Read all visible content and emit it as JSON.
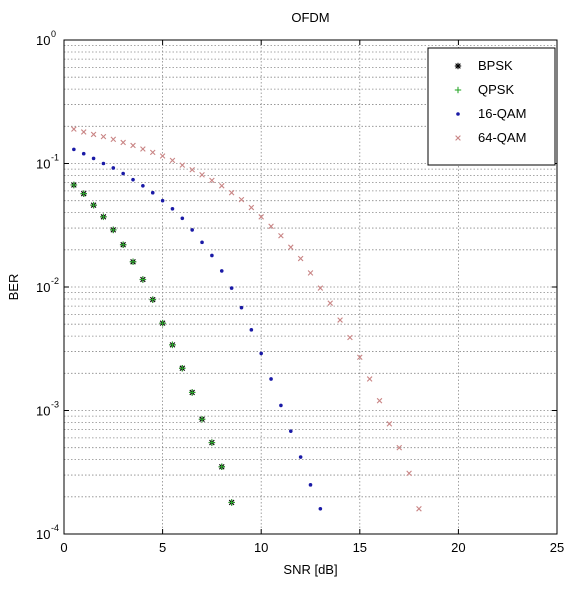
{
  "chart_data": {
    "type": "scatter",
    "title": "OFDM",
    "xlabel": "SNR [dB]",
    "ylabel": "BER",
    "xlim": [
      0,
      25
    ],
    "ylim": [
      0.0001,
      1
    ],
    "yscale": "log",
    "grid": true,
    "legend_position": "top-right",
    "x_ticks": [
      {
        "value": 0,
        "label": "0"
      },
      {
        "value": 5,
        "label": "5"
      },
      {
        "value": 10,
        "label": "10"
      },
      {
        "value": 15,
        "label": "15"
      },
      {
        "value": 20,
        "label": "20"
      },
      {
        "value": 25,
        "label": "25"
      }
    ],
    "y_ticks": [
      {
        "value": 0.0001,
        "base": "10",
        "exp": "-4"
      },
      {
        "value": 0.001,
        "base": "10",
        "exp": "-3"
      },
      {
        "value": 0.01,
        "base": "10",
        "exp": "-2"
      },
      {
        "value": 0.1,
        "base": "10",
        "exp": "-1"
      },
      {
        "value": 1,
        "base": "10",
        "exp": "0"
      }
    ],
    "series": [
      {
        "name": "BPSK",
        "marker": "asterisk",
        "color": "#000000",
        "x": [
          0.5,
          1,
          1.5,
          2,
          2.5,
          3,
          3.5,
          4,
          4.5,
          5,
          5.5,
          6,
          6.5,
          7,
          7.5,
          8,
          8.5
        ],
        "y": [
          0.067,
          0.057,
          0.046,
          0.037,
          0.029,
          0.022,
          0.016,
          0.0115,
          0.0079,
          0.0051,
          0.0034,
          0.0022,
          0.0014,
          0.00085,
          0.00055,
          0.00035,
          0.00018
        ]
      },
      {
        "name": "QPSK",
        "marker": "plus",
        "color": "#2ea82e",
        "x": [
          0.5,
          1,
          1.5,
          2,
          2.5,
          3,
          3.5,
          4,
          4.5,
          5,
          5.5,
          6,
          6.5,
          7,
          7.5,
          8,
          8.5
        ],
        "y": [
          0.067,
          0.057,
          0.046,
          0.037,
          0.029,
          0.022,
          0.016,
          0.0115,
          0.0079,
          0.0051,
          0.0034,
          0.0022,
          0.0014,
          0.00085,
          0.00055,
          0.00035,
          0.00018
        ]
      },
      {
        "name": "16-QAM",
        "marker": "dot",
        "color": "#1a1aa6",
        "x": [
          0.5,
          1,
          1.5,
          2,
          2.5,
          3,
          3.5,
          4,
          4.5,
          5,
          5.5,
          6,
          6.5,
          7,
          7.5,
          8,
          8.5,
          9,
          9.5,
          10,
          10.5,
          11,
          11.5,
          12,
          12.5,
          13
        ],
        "y": [
          0.13,
          0.12,
          0.11,
          0.1,
          0.092,
          0.083,
          0.074,
          0.066,
          0.058,
          0.05,
          0.043,
          0.036,
          0.029,
          0.023,
          0.018,
          0.0135,
          0.0098,
          0.0068,
          0.0045,
          0.0029,
          0.0018,
          0.0011,
          0.00068,
          0.00042,
          0.00025,
          0.00016
        ]
      },
      {
        "name": "64-QAM",
        "marker": "x",
        "color": "#c98585",
        "x": [
          0.5,
          1,
          1.5,
          2,
          2.5,
          3,
          3.5,
          4,
          4.5,
          5,
          5.5,
          6,
          6.5,
          7,
          7.5,
          8,
          8.5,
          9,
          9.5,
          10,
          10.5,
          11,
          11.5,
          12,
          12.5,
          13,
          13.5,
          14,
          14.5,
          15,
          15.5,
          16,
          16.5,
          17,
          17.5,
          18
        ],
        "y": [
          0.19,
          0.18,
          0.172,
          0.165,
          0.157,
          0.148,
          0.14,
          0.131,
          0.123,
          0.115,
          0.106,
          0.097,
          0.089,
          0.081,
          0.073,
          0.066,
          0.058,
          0.051,
          0.044,
          0.037,
          0.031,
          0.026,
          0.021,
          0.017,
          0.013,
          0.0098,
          0.0074,
          0.0054,
          0.0039,
          0.0027,
          0.0018,
          0.0012,
          0.00078,
          0.0005,
          0.00031,
          0.00016
        ]
      }
    ]
  }
}
